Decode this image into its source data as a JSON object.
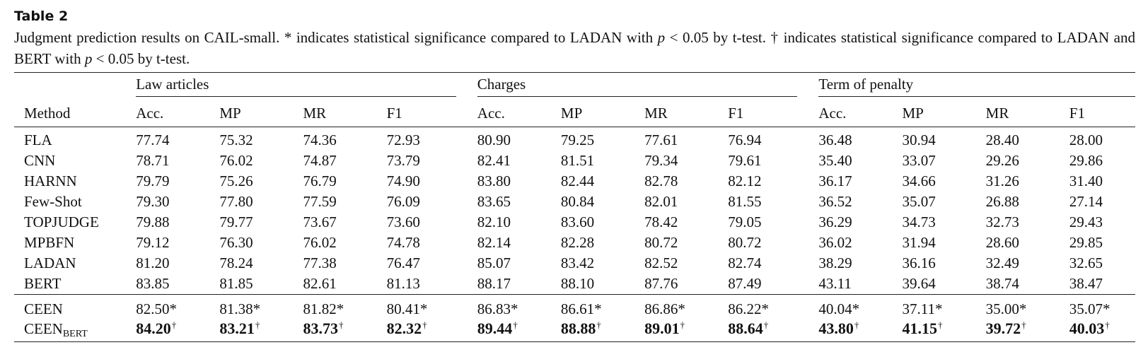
{
  "table_label": "Table 2",
  "caption": {
    "part1": "Judgment prediction results on CAIL-small. * indicates statistical significance compared to LADAN with ",
    "p_var": "p",
    "cond1": " < 0.05 by t-test. † indicates statistical significance compared to LADAN and BERT with ",
    "cond2": " < 0.05 by t-test."
  },
  "groups": [
    "Law articles",
    "Charges",
    "Term of penalty"
  ],
  "method_header": "Method",
  "metric_headers": [
    "Acc.",
    "MP",
    "MR",
    "F1",
    "Acc.",
    "MP",
    "MR",
    "F1",
    "Acc.",
    "MP",
    "MR",
    "F1"
  ],
  "baselines": [
    {
      "method": "FLA",
      "values": [
        "77.74",
        "75.32",
        "74.36",
        "72.93",
        "80.90",
        "79.25",
        "77.61",
        "76.94",
        "36.48",
        "30.94",
        "28.40",
        "28.00"
      ]
    },
    {
      "method": "CNN",
      "values": [
        "78.71",
        "76.02",
        "74.87",
        "73.79",
        "82.41",
        "81.51",
        "79.34",
        "79.61",
        "35.40",
        "33.07",
        "29.26",
        "29.86"
      ]
    },
    {
      "method": "HARNN",
      "values": [
        "79.79",
        "75.26",
        "76.79",
        "74.90",
        "83.80",
        "82.44",
        "82.78",
        "82.12",
        "36.17",
        "34.66",
        "31.26",
        "31.40"
      ]
    },
    {
      "method": "Few-Shot",
      "values": [
        "79.30",
        "77.80",
        "77.59",
        "76.09",
        "83.65",
        "80.84",
        "82.01",
        "81.55",
        "36.52",
        "35.07",
        "26.88",
        "27.14"
      ]
    },
    {
      "method": "TOPJUDGE",
      "values": [
        "79.88",
        "79.77",
        "73.67",
        "73.60",
        "82.10",
        "83.60",
        "78.42",
        "79.05",
        "36.29",
        "34.73",
        "32.73",
        "29.43"
      ]
    },
    {
      "method": "MPBFN",
      "values": [
        "79.12",
        "76.30",
        "76.02",
        "74.78",
        "82.14",
        "82.28",
        "80.72",
        "80.72",
        "36.02",
        "31.94",
        "28.60",
        "29.85"
      ]
    },
    {
      "method": "LADAN",
      "values": [
        "81.20",
        "78.24",
        "77.38",
        "76.47",
        "85.07",
        "83.42",
        "82.52",
        "82.74",
        "38.29",
        "36.16",
        "32.49",
        "32.65"
      ]
    },
    {
      "method": "BERT",
      "values": [
        "83.85",
        "81.85",
        "82.61",
        "81.13",
        "88.17",
        "88.10",
        "87.76",
        "87.49",
        "43.11",
        "39.64",
        "38.74",
        "38.47"
      ]
    }
  ],
  "ceen": {
    "method": "CEEN",
    "values": [
      "82.50*",
      "81.38*",
      "81.82*",
      "80.41*",
      "86.83*",
      "86.61*",
      "86.86*",
      "86.22*",
      "40.04*",
      "37.11*",
      "35.00*",
      "35.07*"
    ]
  },
  "ceen_bert": {
    "method": "CEEN",
    "method_sub": "BERT",
    "mark": "†",
    "values": [
      "84.20",
      "83.21",
      "83.73",
      "82.32",
      "89.44",
      "88.88",
      "89.01",
      "88.64",
      "43.80",
      "41.15",
      "39.72",
      "40.03"
    ]
  }
}
